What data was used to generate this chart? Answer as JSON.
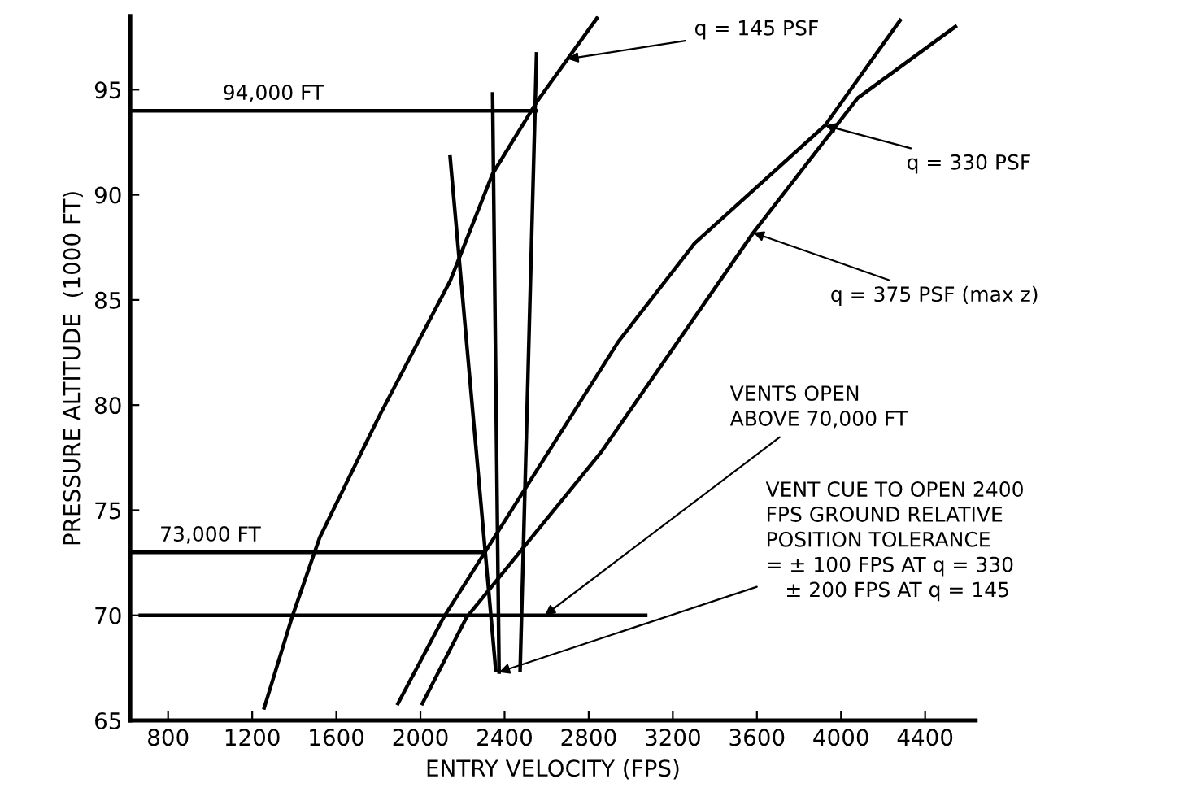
{
  "chart_data": {
    "type": "line",
    "xlabel": "ENTRY VELOCITY (FPS)",
    "ylabel": "PRESSURE ALTITUDE  (1000 FT)",
    "xlim": [
      620,
      4640
    ],
    "ylim": [
      65,
      98.5
    ],
    "xticks": [
      800,
      1200,
      1600,
      2000,
      2400,
      2800,
      3200,
      3600,
      4000,
      4400
    ],
    "yticks": [
      65,
      70,
      75,
      80,
      85,
      90,
      95
    ],
    "grid": false,
    "legend": false,
    "marker": "none",
    "line_style": "solid",
    "series": [
      {
        "color": "#000000",
        "x": [
          1257,
          1389,
          1521,
          1800,
          2141,
          2343,
          2552,
          2839
        ],
        "values": [
          65.6,
          69.9,
          73.7,
          79.4,
          85.9,
          91.0,
          94.4,
          98.4
        ]
      },
      {
        "color": "#000000",
        "x": [
          1893,
          2110,
          2940,
          3304,
          3924,
          4281
        ],
        "values": [
          65.8,
          69.9,
          83.0,
          87.7,
          93.3,
          98.3
        ]
      },
      {
        "color": "#000000",
        "x": [
          2009,
          2219,
          2862,
          3583,
          4079,
          4544
        ],
        "values": [
          65.8,
          69.9,
          77.8,
          88.2,
          94.6,
          98.0
        ]
      },
      {
        "color": "#000000",
        "x": [
          2141,
          2358
        ],
        "values": [
          91.8,
          67.4
        ]
      },
      {
        "color": "#000000",
        "x": [
          2343,
          2374
        ],
        "values": [
          94.8,
          67.3
        ]
      },
      {
        "color": "#000000",
        "x": [
          2552,
          2474
        ],
        "values": [
          96.7,
          67.4
        ]
      },
      {
        "color": "#000000",
        "x": [
          620,
          2552
        ],
        "values": [
          94,
          94
        ]
      },
      {
        "color": "#000000",
        "x": [
          620,
          2296
        ],
        "values": [
          73,
          73
        ]
      },
      {
        "color": "#000000",
        "x": [
          668,
          3071
        ],
        "values": [
          70,
          70
        ]
      }
    ],
    "annotations": [
      {
        "text": "94,000 FT",
        "x": 1300,
        "y": 94
      },
      {
        "text": "73,000 FT",
        "x": 1000,
        "y": 73
      },
      {
        "text": "q = 145 PSF",
        "x": 2700,
        "y": 96.46
      },
      {
        "text": "q = 330 PSF",
        "x": 3924,
        "y": 93.3
      },
      {
        "text": "q = 375 PSF (max z)",
        "x": 3583,
        "y": 88.2
      },
      {
        "text": "VENTS OPEN\nABOVE 70,000 FT",
        "x": 2591,
        "y": 70
      },
      {
        "text": "VENT CUE TO OPEN 2400\nFPS GROUND RELATIVE\nPOSITION TOLERANCE\n= ± 100 FPS AT q = 330\n   ± 200 FPS AT q = 145",
        "x": 2374,
        "y": 67.3
      }
    ]
  }
}
